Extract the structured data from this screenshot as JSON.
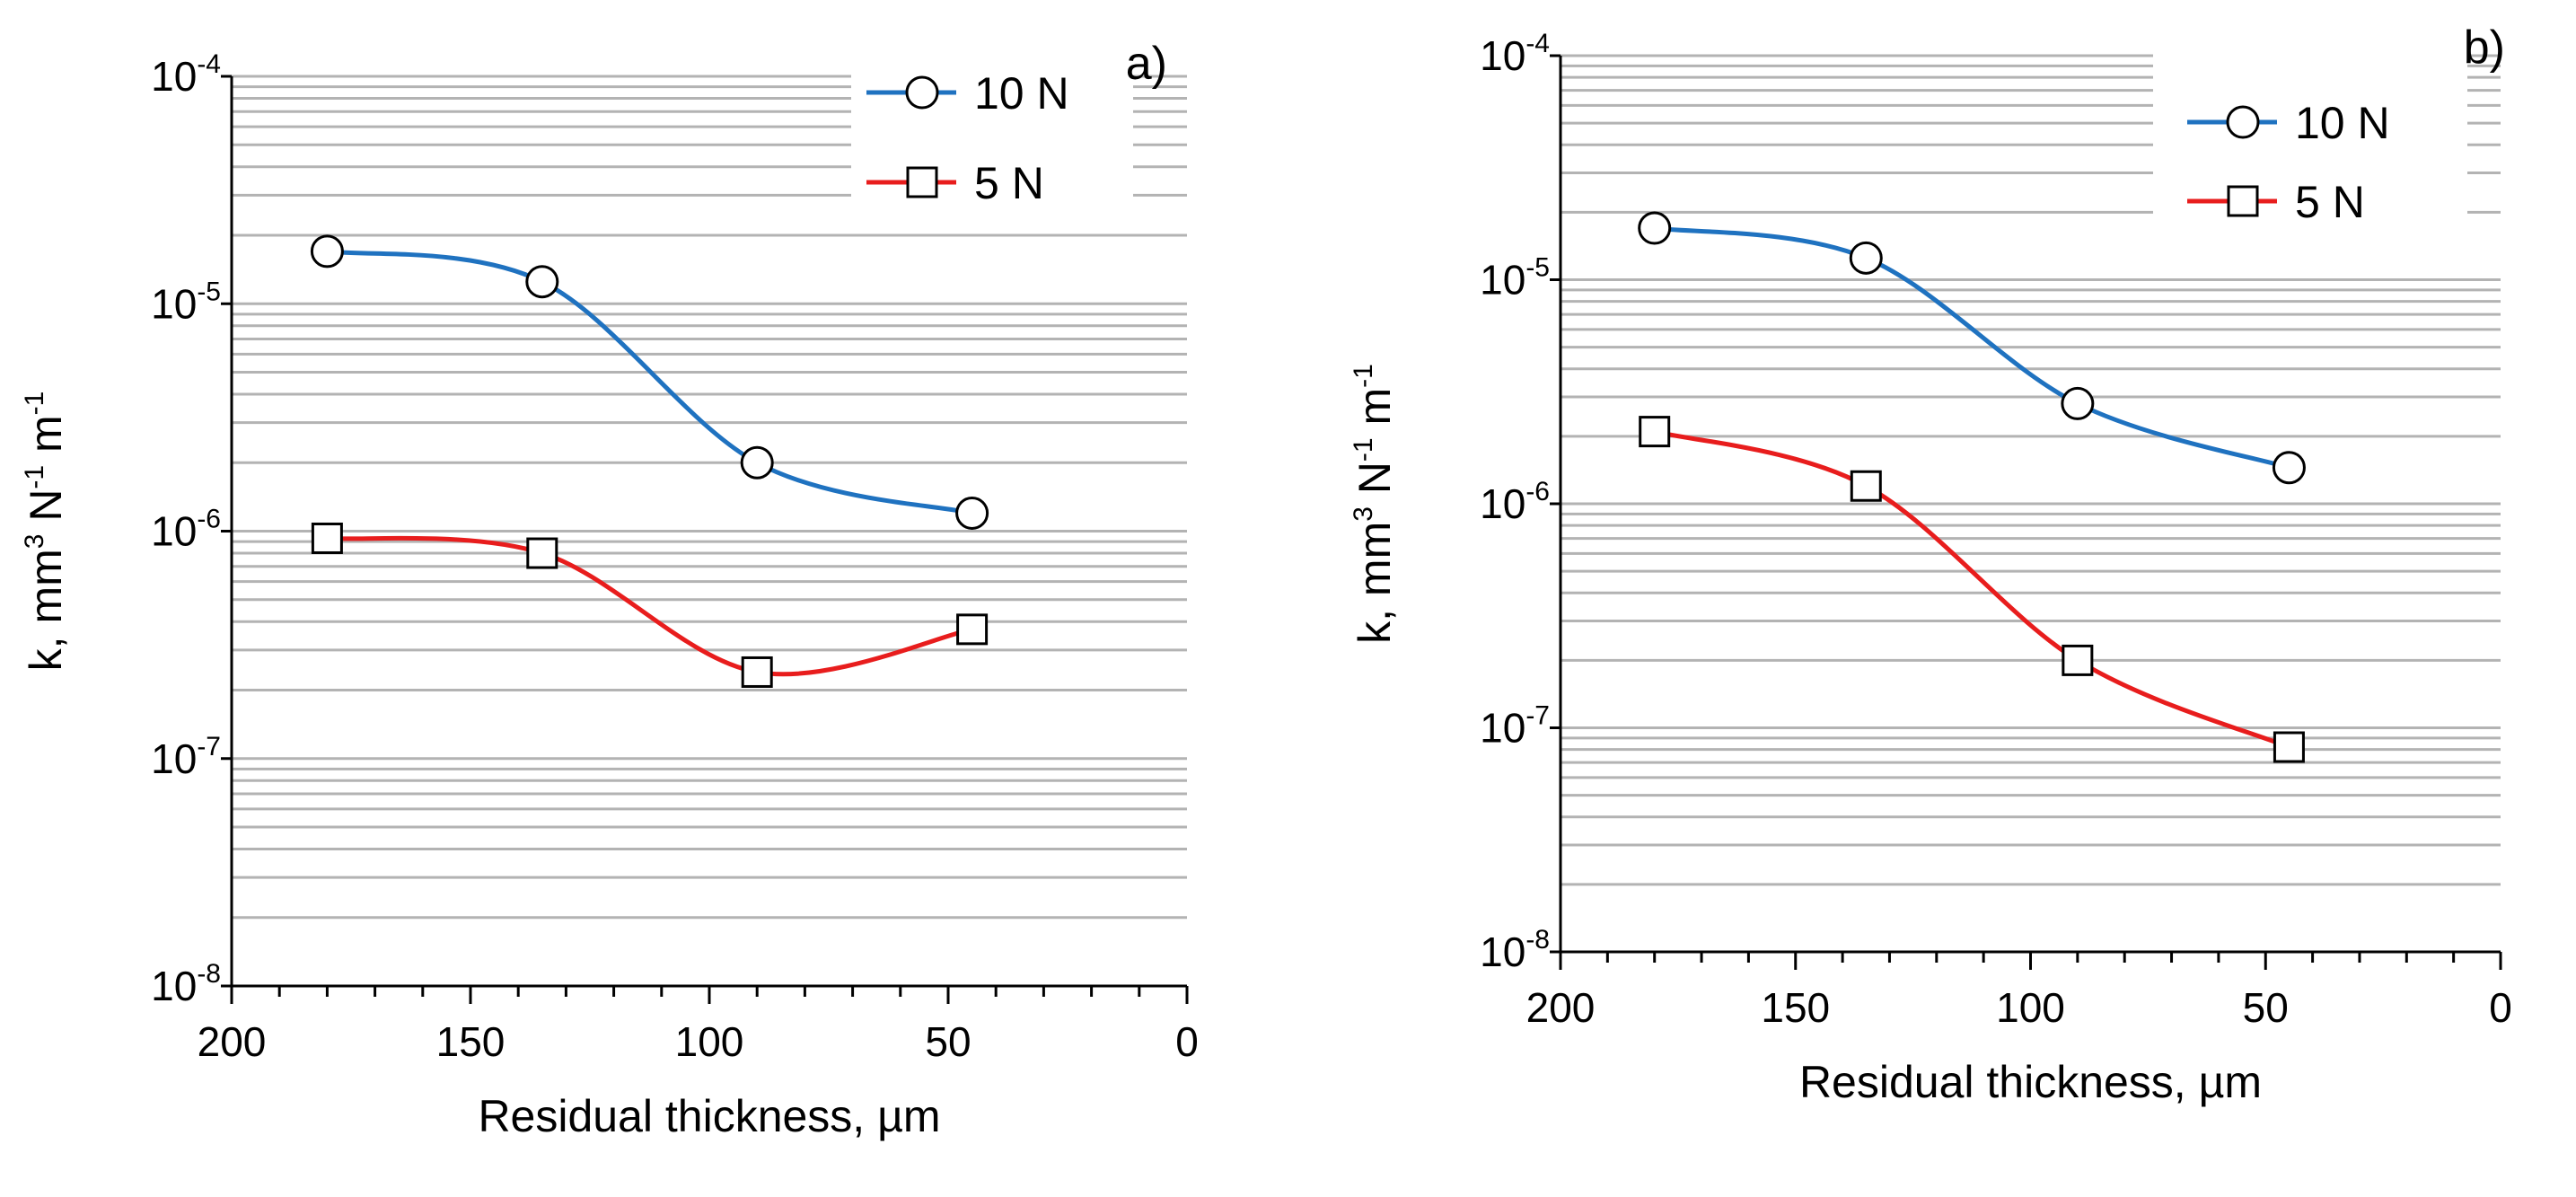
{
  "chart_data": [
    {
      "type": "line",
      "panel_label": "a)",
      "xlabel": "Residual thickness, µm",
      "ylabel": {
        "k": "k, mm",
        "s1": "3",
        "m": " N",
        "s2": "-1",
        "e": " m",
        "s3": "-1"
      },
      "x_reversed": true,
      "xlim": [
        200,
        0
      ],
      "x_ticks": [
        "200",
        "150",
        "100",
        "50",
        "0"
      ],
      "y_scale": "log",
      "ylim": [
        1e-08,
        0.0001
      ],
      "y_ticks": [
        {
          "base": "10",
          "exp": "-4"
        },
        {
          "base": "10",
          "exp": "-5"
        },
        {
          "base": "10",
          "exp": "-6"
        },
        {
          "base": "10",
          "exp": "-7"
        },
        {
          "base": "10",
          "exp": "-8"
        }
      ],
      "grid": "horizontal minor log gridlines",
      "legend_position": "top-right",
      "series": [
        {
          "name": "10 N",
          "marker": "circle",
          "color": "#1f72c0",
          "x": [
            180,
            135,
            90,
            45
          ],
          "y": [
            1.7e-05,
            1.25e-05,
            2e-06,
            1.2e-06
          ]
        },
        {
          "name": "5 N",
          "marker": "square",
          "color": "#e81d1d",
          "x": [
            180,
            135,
            90,
            45
          ],
          "y": [
            9.3e-07,
            8e-07,
            2.4e-07,
            3.7e-07
          ]
        }
      ]
    },
    {
      "type": "line",
      "panel_label": "b)",
      "xlabel": "Residual thickness, µm",
      "ylabel": {
        "k": "k, mm",
        "s1": "3",
        "m": " N",
        "s2": "-1",
        "e": " m",
        "s3": "-1"
      },
      "x_reversed": true,
      "xlim": [
        200,
        0
      ],
      "x_ticks": [
        "200",
        "150",
        "100",
        "50",
        "0"
      ],
      "y_scale": "log",
      "ylim": [
        1e-08,
        0.0001
      ],
      "y_ticks": [
        {
          "base": "10",
          "exp": "-4"
        },
        {
          "base": "10",
          "exp": "-5"
        },
        {
          "base": "10",
          "exp": "-6"
        },
        {
          "base": "10",
          "exp": "-7"
        },
        {
          "base": "10",
          "exp": "-8"
        }
      ],
      "grid": "horizontal minor log gridlines",
      "legend_position": "top-right",
      "series": [
        {
          "name": "10 N",
          "marker": "circle",
          "color": "#1f72c0",
          "x": [
            180,
            135,
            90,
            45
          ],
          "y": [
            1.7e-05,
            1.25e-05,
            2.8e-06,
            1.45e-06
          ]
        },
        {
          "name": "5 N",
          "marker": "square",
          "color": "#e81d1d",
          "x": [
            180,
            135,
            90,
            45
          ],
          "y": [
            2.1e-06,
            1.2e-06,
            2e-07,
            8.2e-08
          ]
        }
      ]
    }
  ]
}
